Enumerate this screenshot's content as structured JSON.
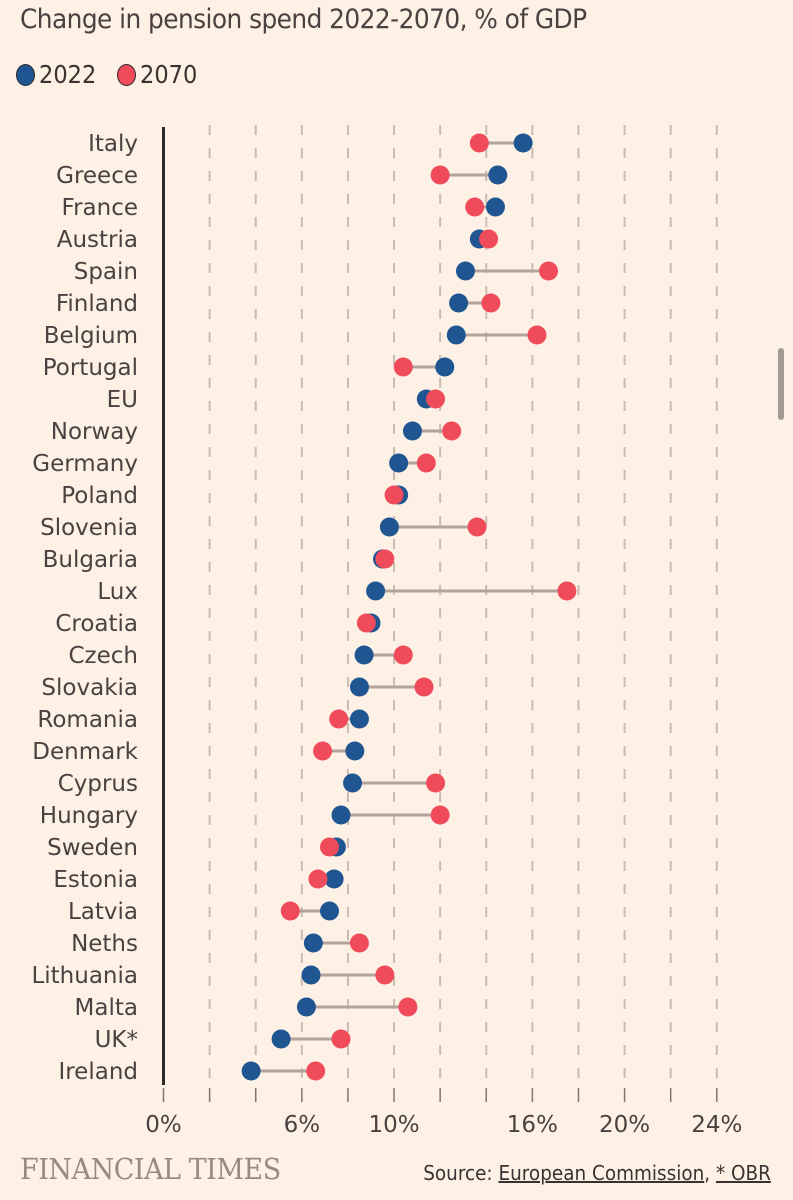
{
  "title": "Change in pension spend 2022-2070, % of GDP",
  "legend": [
    {
      "label": "2022",
      "color": "#1f5591"
    },
    {
      "label": "2070",
      "color": "#f04b5a"
    }
  ],
  "footer": {
    "brand": "FINANCIAL TIMES",
    "source_prefix": "Source: ",
    "source_link1": "European Commission",
    "source_sep": ", ",
    "source_link2": "* OBR"
  },
  "chart_data": {
    "type": "dumbbell",
    "title": "Change in pension spend 2022-2070, % of GDP",
    "xlabel": "",
    "ylabel": "",
    "xlim": [
      0,
      24
    ],
    "grid_step": 2,
    "grid": true,
    "x_tick_labels": [
      {
        "value": 0,
        "label": "0%"
      },
      {
        "value": 6,
        "label": "6%"
      },
      {
        "value": 10,
        "label": "10%"
      },
      {
        "value": 16,
        "label": "16%"
      },
      {
        "value": 20,
        "label": "20%"
      },
      {
        "value": 24,
        "label": "24%"
      }
    ],
    "legend_position": "top-left",
    "categories": [
      "Italy",
      "Greece",
      "France",
      "Austria",
      "Spain",
      "Finland",
      "Belgium",
      "Portugal",
      "EU",
      "Norway",
      "Germany",
      "Poland",
      "Slovenia",
      "Bulgaria",
      "Lux",
      "Croatia",
      "Czech",
      "Slovakia",
      "Romania",
      "Denmark",
      "Cyprus",
      "Hungary",
      "Sweden",
      "Estonia",
      "Latvia",
      "Neths",
      "Lithuania",
      "Malta",
      "UK*",
      "Ireland"
    ],
    "series": [
      {
        "name": "2022",
        "color": "#1f5591",
        "values": [
          15.6,
          14.5,
          14.4,
          13.7,
          13.1,
          12.8,
          12.7,
          12.2,
          11.4,
          10.8,
          10.2,
          10.2,
          9.8,
          9.5,
          9.2,
          9.0,
          8.7,
          8.5,
          8.5,
          8.3,
          8.2,
          7.7,
          7.5,
          7.4,
          7.2,
          6.5,
          6.4,
          6.2,
          5.1,
          3.8
        ]
      },
      {
        "name": "2070",
        "color": "#f04b5a",
        "values": [
          13.7,
          12.0,
          13.5,
          14.1,
          16.7,
          14.2,
          16.2,
          10.4,
          11.8,
          12.5,
          11.4,
          10.0,
          13.6,
          9.6,
          17.5,
          8.8,
          10.4,
          11.3,
          7.6,
          6.9,
          11.8,
          12.0,
          7.2,
          6.7,
          5.5,
          8.5,
          9.6,
          10.6,
          7.7,
          6.6
        ]
      }
    ]
  }
}
